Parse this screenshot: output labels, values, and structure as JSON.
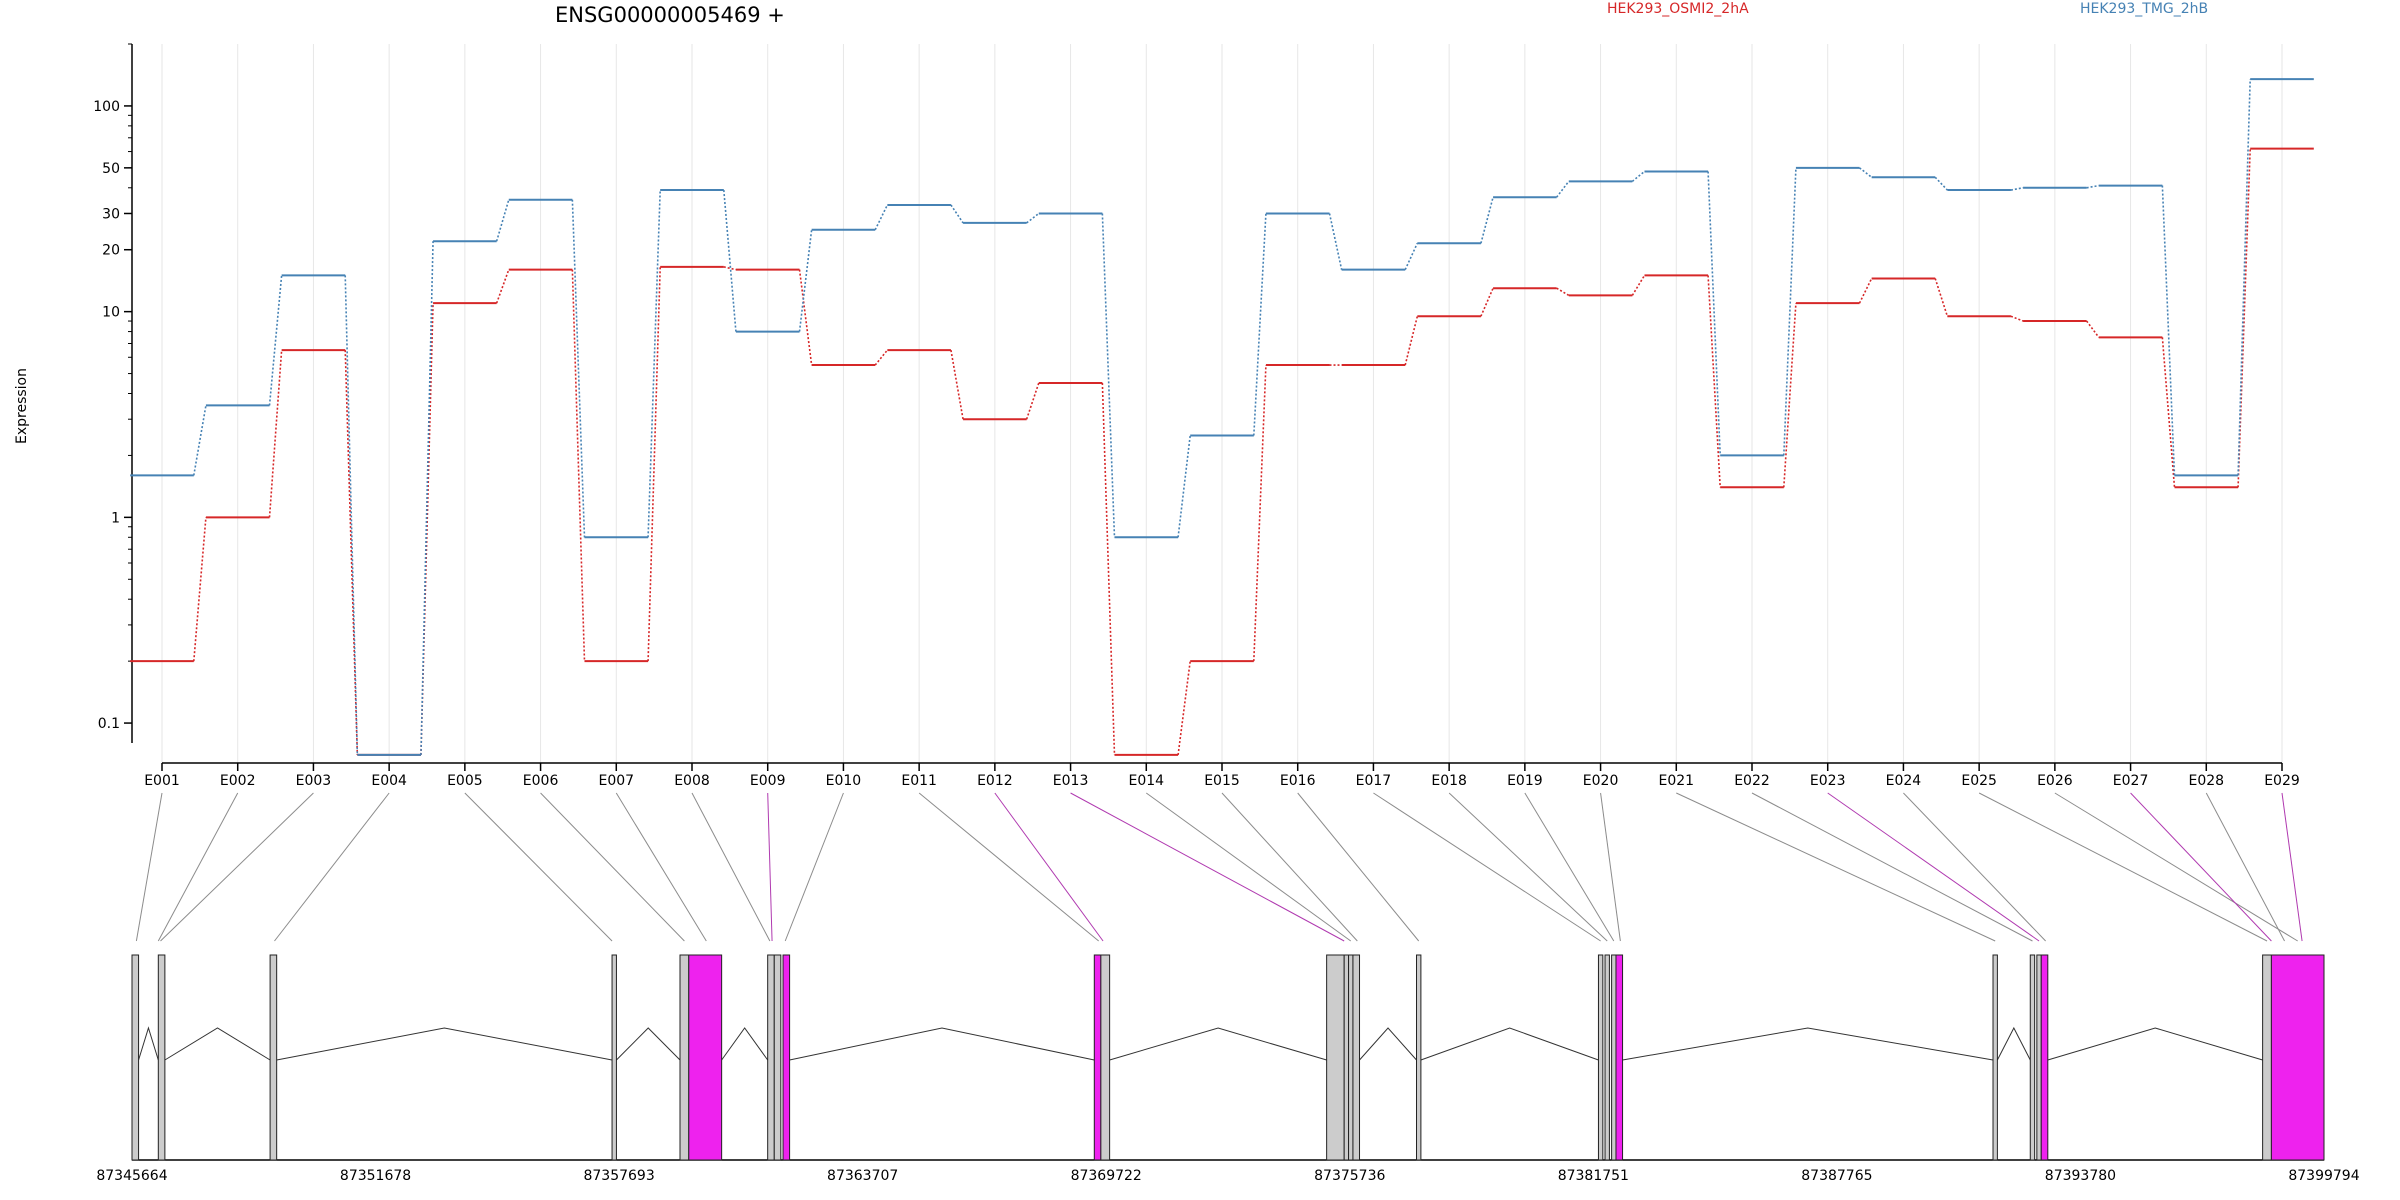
{
  "chart_data": {
    "type": "line",
    "title": "ENSG00000005469 +",
    "ylabel": "Expression",
    "yscale": "log",
    "ylim": [
      0.08,
      200
    ],
    "yticks": [
      {
        "v": 0.1,
        "label": "0.1"
      },
      {
        "v": 1,
        "label": "1"
      },
      {
        "v": 10,
        "label": "10"
      },
      {
        "v": 20,
        "label": "20"
      },
      {
        "v": 30,
        "label": "30"
      },
      {
        "v": 50,
        "label": "50"
      },
      {
        "v": 100,
        "label": "100"
      }
    ],
    "categories": [
      "E001",
      "E002",
      "E003",
      "E004",
      "E005",
      "E006",
      "E007",
      "E008",
      "E009",
      "E010",
      "E011",
      "E012",
      "E013",
      "E014",
      "E015",
      "E016",
      "E017",
      "E018",
      "E019",
      "E020",
      "E021",
      "E022",
      "E023",
      "E024",
      "E025",
      "E026",
      "E027",
      "E028",
      "E029"
    ],
    "series": [
      {
        "name": "HEK293_OSMI2_2hA",
        "color": "#d62728",
        "values": [
          0.2,
          1.0,
          6.5,
          0.07,
          11,
          16,
          0.2,
          16.5,
          16,
          5.5,
          6.5,
          3,
          4.5,
          0.07,
          0.2,
          5.5,
          5.5,
          9.5,
          13,
          12,
          15,
          1.4,
          11,
          14.5,
          9.5,
          9,
          7.5,
          1.4,
          62
        ]
      },
      {
        "name": "HEK293_TMG_2hB",
        "color": "#4682b4",
        "values": [
          1.6,
          3.5,
          15,
          0.07,
          22,
          35,
          0.8,
          39,
          8,
          25,
          33,
          27,
          30,
          0.8,
          2.5,
          30,
          16,
          21.5,
          36,
          43,
          48,
          2,
          50,
          45,
          39,
          40,
          41,
          1.6,
          135
        ]
      }
    ],
    "genome_axis": {
      "labels": [
        "87345664",
        "87351678",
        "87357693",
        "87363707",
        "87369722",
        "87375736",
        "87381751",
        "87387765",
        "87393780",
        "87399794"
      ]
    },
    "legend_position": "top"
  },
  "colors": {
    "exon_default": "#cccccc",
    "exon_highlight": "#ee22ee",
    "connector_default": "#8c8c8c",
    "connector_highlight": "#b03ab0"
  }
}
